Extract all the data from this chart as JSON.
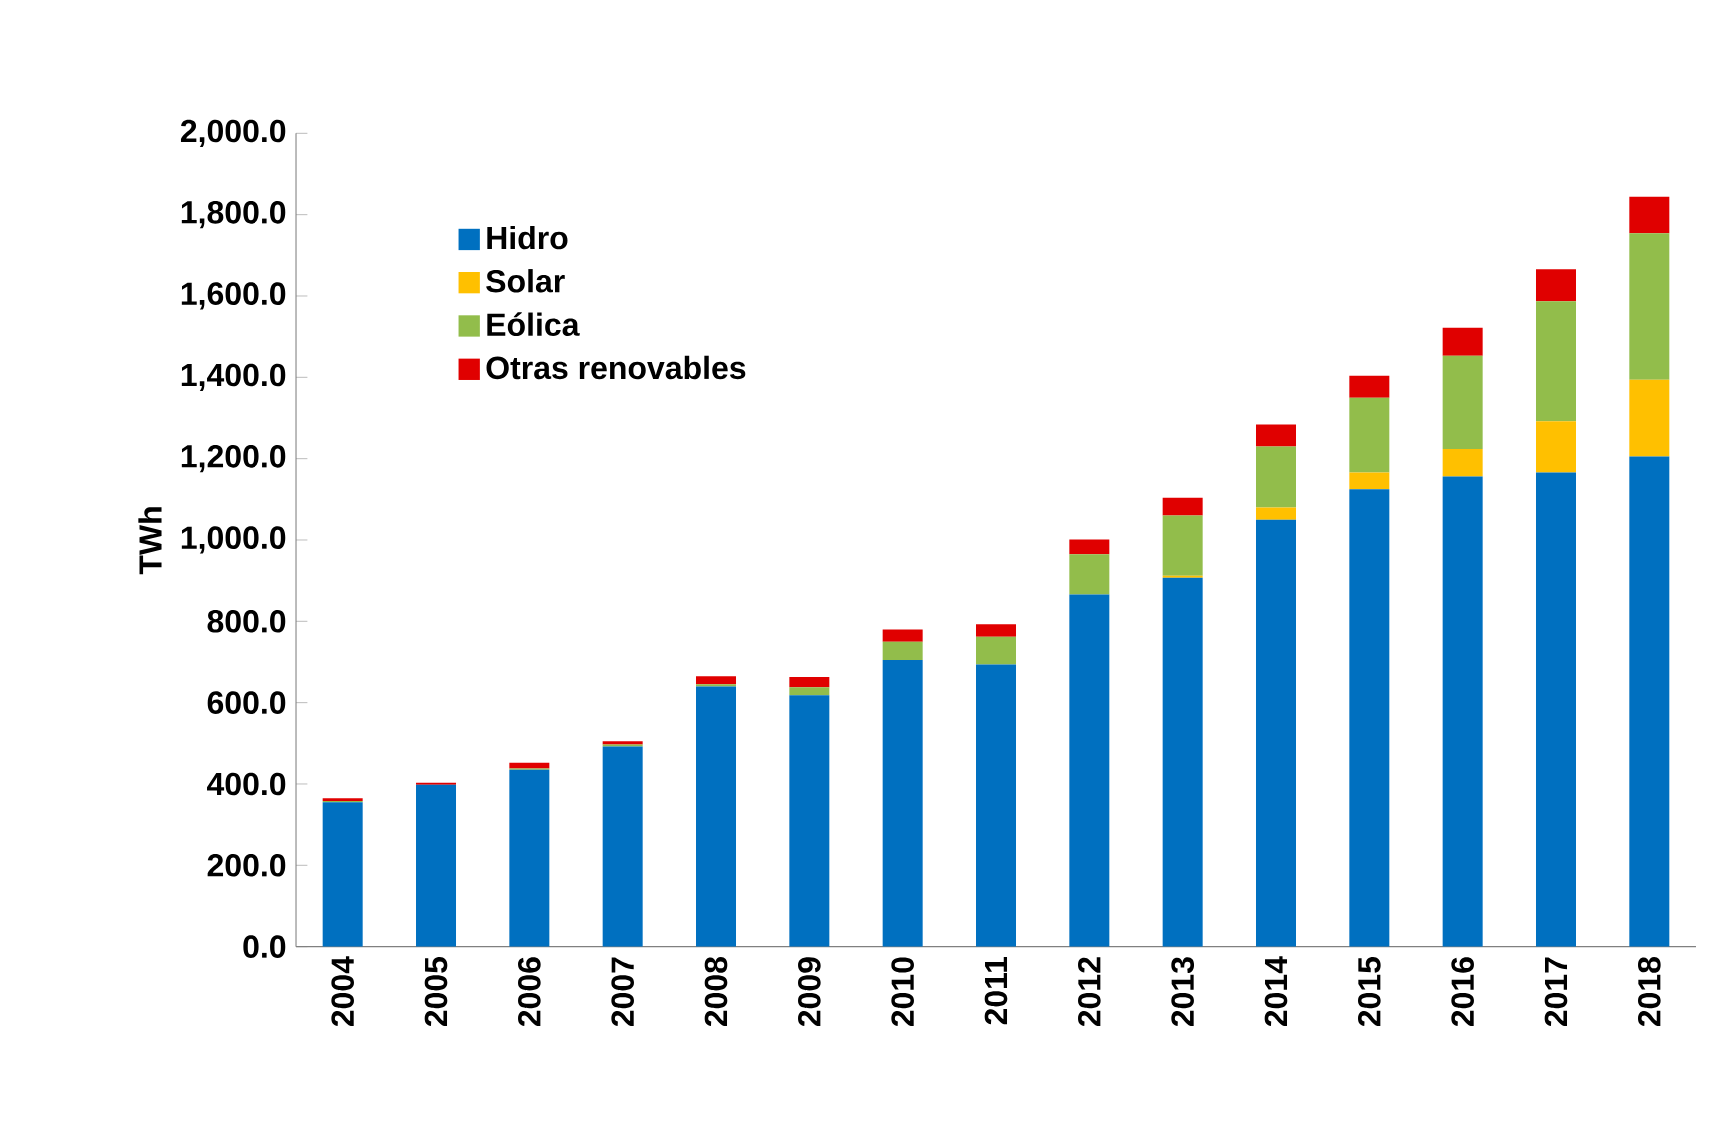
{
  "chart_data": {
    "type": "bar",
    "stacked": true,
    "ylabel": "TWh",
    "categories": [
      "2004",
      "2005",
      "2006",
      "2007",
      "2008",
      "2009",
      "2010",
      "2011",
      "2012",
      "2013",
      "2014",
      "2015",
      "2016",
      "2017",
      "2018"
    ],
    "series": [
      {
        "name": "Hidro",
        "color": "#0070c0",
        "values": [
          355,
          398,
          435,
          492,
          640,
          618,
          705,
          694,
          866,
          907,
          1050,
          1125,
          1156,
          1166,
          1205
        ]
      },
      {
        "name": "Solar",
        "color": "#ffc000",
        "values": [
          0,
          0,
          0,
          0,
          0,
          0,
          0,
          0,
          0,
          5,
          30,
          41,
          68,
          126,
          189
        ]
      },
      {
        "name": "Eólica",
        "color": "#92bd4b",
        "values": [
          3,
          0,
          3,
          5,
          5,
          20,
          45,
          68,
          99,
          148,
          150,
          184,
          229,
          295,
          360
        ]
      },
      {
        "name": "Otras renovables",
        "color": "#e00000",
        "values": [
          7,
          5,
          14,
          8,
          20,
          25,
          30,
          31,
          36,
          44,
          54,
          54,
          69,
          79,
          90
        ]
      }
    ],
    "ylim": [
      0,
      2000
    ],
    "yticks": [
      {
        "value": 0,
        "label": "0.0"
      },
      {
        "value": 200,
        "label": "200.0"
      },
      {
        "value": 400,
        "label": "400.0"
      },
      {
        "value": 600,
        "label": "600.0"
      },
      {
        "value": 800,
        "label": "800.0"
      },
      {
        "value": 1000,
        "label": "1,000.0"
      },
      {
        "value": 1200,
        "label": "1,200.0"
      },
      {
        "value": 1400,
        "label": "1,400.0"
      },
      {
        "value": 1600,
        "label": "1,600.0"
      },
      {
        "value": 1800,
        "label": "1,800.0"
      },
      {
        "value": 2000,
        "label": "2,000.0"
      }
    ],
    "grid": false,
    "legend": "top left"
  }
}
